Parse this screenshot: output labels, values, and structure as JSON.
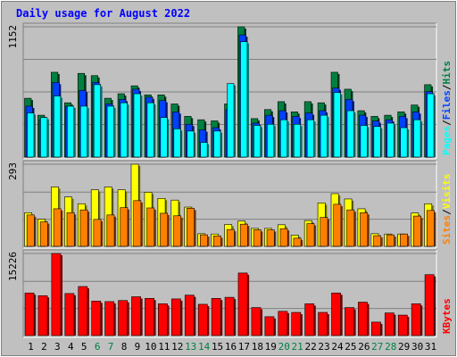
{
  "chart_data": [
    {
      "type": "bar",
      "panel": "hits-files-pages",
      "title": "Daily usage for August 2022",
      "ylabel_top_tick": "1152",
      "ylim": [
        0,
        1152
      ],
      "grid": true,
      "legend_placement": "right-vertical",
      "legend": [
        {
          "name": "Pages",
          "color": "#00ffff"
        },
        {
          "name": "Files",
          "color": "#0040ff"
        },
        {
          "name": "Hits",
          "color": "#008040"
        }
      ],
      "categories": [
        "1",
        "2",
        "3",
        "4",
        "5",
        "6",
        "7",
        "8",
        "9",
        "10",
        "11",
        "12",
        "13",
        "14",
        "15",
        "16",
        "17",
        "18",
        "19",
        "20",
        "21",
        "22",
        "23",
        "24",
        "25",
        "26",
        "27",
        "28",
        "29",
        "30",
        "31"
      ],
      "series": [
        {
          "name": "Hits",
          "color": "#008040",
          "values": [
            520,
            370,
            750,
            480,
            740,
            720,
            520,
            560,
            630,
            550,
            550,
            470,
            360,
            330,
            320,
            470,
            1152,
            340,
            420,
            490,
            400,
            490,
            480,
            750,
            600,
            410,
            360,
            370,
            400,
            460,
            640
          ]
        },
        {
          "name": "Files",
          "color": "#0040ff",
          "values": [
            450,
            330,
            660,
            450,
            590,
            660,
            470,
            510,
            600,
            530,
            500,
            400,
            290,
            240,
            260,
            420,
            1080,
            300,
            370,
            410,
            360,
            390,
            410,
            610,
            510,
            370,
            320,
            330,
            360,
            400,
            580
          ]
        },
        {
          "name": "Pages",
          "color": "#00ffff",
          "values": [
            390,
            350,
            540,
            450,
            450,
            640,
            450,
            480,
            560,
            480,
            350,
            250,
            230,
            130,
            230,
            650,
            1020,
            280,
            290,
            330,
            290,
            330,
            370,
            570,
            410,
            280,
            270,
            300,
            260,
            330,
            560
          ]
        }
      ]
    },
    {
      "type": "bar",
      "panel": "visits-sites",
      "ylabel_top_tick": "293",
      "ylim": [
        0,
        293
      ],
      "grid": true,
      "legend_placement": "right-vertical",
      "legend": [
        {
          "name": "Sites",
          "color": "#ff8000"
        },
        {
          "name": "Visits",
          "color": "#ffff00"
        }
      ],
      "categories": [
        "1",
        "2",
        "3",
        "4",
        "5",
        "6",
        "7",
        "8",
        "9",
        "10",
        "11",
        "12",
        "13",
        "14",
        "15",
        "16",
        "17",
        "18",
        "19",
        "20",
        "21",
        "22",
        "23",
        "24",
        "25",
        "26",
        "27",
        "28",
        "29",
        "30",
        "31"
      ],
      "series": [
        {
          "name": "Visits",
          "color": "#ffff00",
          "values": [
            120,
            97,
            212,
            176,
            152,
            202,
            212,
            202,
            293,
            193,
            171,
            165,
            140,
            45,
            44,
            78,
            90,
            64,
            64,
            77,
            40,
            92,
            155,
            188,
            169,
            134,
            45,
            44,
            44,
            119,
            152
          ]
        },
        {
          "name": "Sites",
          "color": "#ff8000",
          "values": [
            112,
            87,
            134,
            120,
            130,
            96,
            112,
            138,
            163,
            137,
            118,
            109,
            136,
            41,
            37,
            60,
            79,
            59,
            59,
            63,
            29,
            81,
            103,
            150,
            130,
            120,
            38,
            41,
            44,
            108,
            128
          ]
        }
      ]
    },
    {
      "type": "bar",
      "panel": "kbytes",
      "ylabel_top_tick": "15226",
      "ylim": [
        0,
        15226
      ],
      "grid": true,
      "legend_placement": "right-vertical",
      "legend": [
        {
          "name": "KBytes",
          "color": "#ff0000"
        }
      ],
      "categories": [
        "1",
        "2",
        "3",
        "4",
        "5",
        "6",
        "7",
        "8",
        "9",
        "10",
        "11",
        "12",
        "13",
        "14",
        "15",
        "16",
        "17",
        "18",
        "19",
        "20",
        "21",
        "22",
        "23",
        "24",
        "25",
        "26",
        "27",
        "28",
        "29",
        "30",
        "31"
      ],
      "series": [
        {
          "name": "KBytes",
          "color": "#ff0000",
          "values": [
            7900,
            7400,
            15226,
            7800,
            9100,
            6400,
            6300,
            6500,
            7200,
            6900,
            5900,
            6800,
            7500,
            5800,
            6900,
            7100,
            11600,
            5200,
            3500,
            4500,
            4300,
            5900,
            4300,
            7900,
            5200,
            6200,
            2500,
            4200,
            3800,
            5900,
            11300
          ]
        }
      ]
    }
  ],
  "colors": {
    "background": "#c0c0c0",
    "plot_background": "#c0c0c0",
    "title": "#0000ff",
    "weekend_label": "#008040",
    "weekday_label": "#000000"
  },
  "weekend_days": [
    "6",
    "7",
    "13",
    "14",
    "20",
    "21",
    "27",
    "28"
  ]
}
